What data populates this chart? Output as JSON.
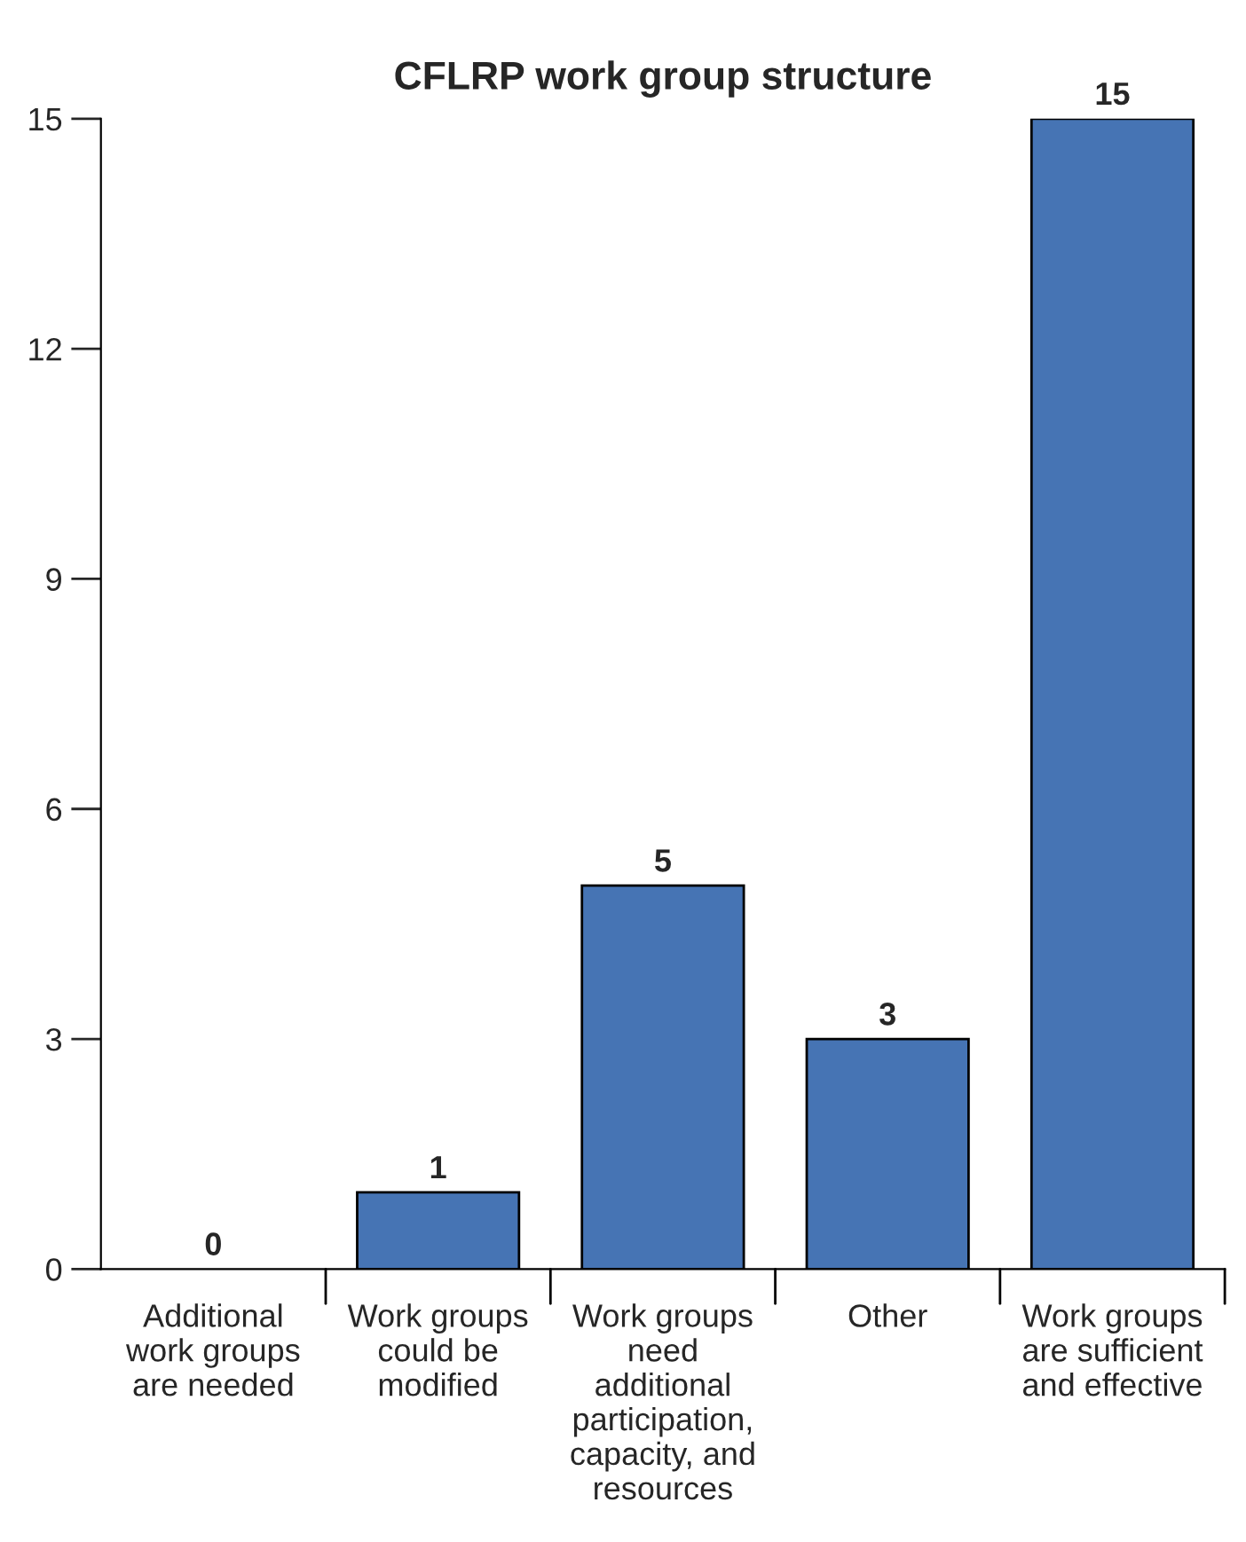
{
  "chart_data": {
    "type": "bar",
    "title": "CFLRP work group structure",
    "categories": [
      "Additional\nwork groups\nare needed",
      "Work groups\ncould be\nmodified",
      "Work groups\nneed\nadditional\nparticipation,\ncapacity, and\nresources",
      "Other",
      "Work groups\nare sufficient\nand effective"
    ],
    "values": [
      0,
      1,
      5,
      3,
      15
    ],
    "color": "#4674b4",
    "ylim": [
      0,
      15
    ],
    "yticks": [
      0,
      3,
      6,
      9,
      12,
      15
    ],
    "grid": false,
    "data_labels": true
  }
}
